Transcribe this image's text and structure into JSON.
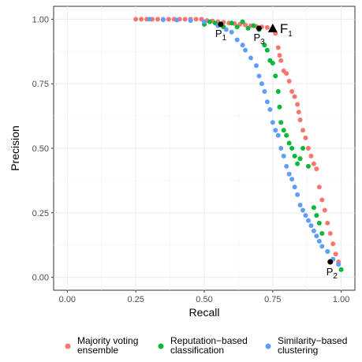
{
  "chart_data": {
    "type": "scatter",
    "xlabel": "Recall",
    "ylabel": "Precision",
    "xlim": [
      -0.05,
      1.05
    ],
    "ylim": [
      -0.05,
      1.05
    ],
    "x_ticks": [
      "0.00",
      "0.25",
      "0.50",
      "0.75",
      "1.00"
    ],
    "y_ticks": [
      "0.00",
      "0.25",
      "0.50",
      "0.75",
      "1.00"
    ],
    "grid": true,
    "legend_position": "bottom",
    "series": [
      {
        "name": "Majority voting ensemble",
        "label_lines": [
          "Majority voting",
          "ensemble"
        ],
        "color": "#F8766D",
        "points": [
          [
            0.25,
            1.0
          ],
          [
            0.27,
            1.0
          ],
          [
            0.29,
            1.0
          ],
          [
            0.31,
            1.0
          ],
          [
            0.33,
            1.0
          ],
          [
            0.35,
            1.0
          ],
          [
            0.37,
            1.0
          ],
          [
            0.39,
            1.0
          ],
          [
            0.41,
            1.0
          ],
          [
            0.43,
            1.0
          ],
          [
            0.45,
            1.0
          ],
          [
            0.47,
            1.0
          ],
          [
            0.49,
            1.0
          ],
          [
            0.51,
            0.995
          ],
          [
            0.53,
            0.993
          ],
          [
            0.55,
            0.99
          ],
          [
            0.57,
            0.988
          ],
          [
            0.59,
            0.985
          ],
          [
            0.61,
            0.983
          ],
          [
            0.63,
            0.98
          ],
          [
            0.65,
            0.978
          ],
          [
            0.67,
            0.975
          ],
          [
            0.69,
            0.972
          ],
          [
            0.71,
            0.97
          ],
          [
            0.73,
            0.968
          ],
          [
            0.76,
            0.945
          ],
          [
            0.77,
            0.89
          ],
          [
            0.775,
            0.86
          ],
          [
            0.78,
            0.84
          ],
          [
            0.79,
            0.8
          ],
          [
            0.8,
            0.79
          ],
          [
            0.81,
            0.76
          ],
          [
            0.82,
            0.72
          ],
          [
            0.83,
            0.7
          ],
          [
            0.84,
            0.67
          ],
          [
            0.845,
            0.64
          ],
          [
            0.85,
            0.61
          ],
          [
            0.86,
            0.57
          ],
          [
            0.87,
            0.54
          ],
          [
            0.88,
            0.5
          ],
          [
            0.89,
            0.47
          ],
          [
            0.9,
            0.44
          ],
          [
            0.91,
            0.42
          ],
          [
            0.92,
            0.35
          ],
          [
            0.93,
            0.3
          ],
          [
            0.94,
            0.26
          ],
          [
            0.95,
            0.21
          ],
          [
            0.96,
            0.17
          ],
          [
            0.97,
            0.13
          ],
          [
            0.98,
            0.09
          ],
          [
            0.99,
            0.06
          ]
        ]
      },
      {
        "name": "Reputation-based classification",
        "label_lines": [
          "Reputation−based",
          "classification"
        ],
        "color": "#00BA38",
        "points": [
          [
            0.5,
            0.98
          ],
          [
            0.52,
            0.99
          ],
          [
            0.54,
            0.985
          ],
          [
            0.57,
            0.97
          ],
          [
            0.6,
            0.985
          ],
          [
            0.62,
            0.97
          ],
          [
            0.64,
            0.99
          ],
          [
            0.66,
            0.965
          ],
          [
            0.68,
            0.975
          ],
          [
            0.7,
            0.96
          ],
          [
            0.72,
            0.9
          ],
          [
            0.73,
            0.88
          ],
          [
            0.74,
            0.84
          ],
          [
            0.75,
            0.83
          ],
          [
            0.76,
            0.78
          ],
          [
            0.77,
            0.72
          ],
          [
            0.775,
            0.66
          ],
          [
            0.78,
            0.6
          ],
          [
            0.79,
            0.57
          ],
          [
            0.8,
            0.55
          ],
          [
            0.81,
            0.52
          ],
          [
            0.82,
            0.5
          ],
          [
            0.83,
            0.47
          ],
          [
            0.84,
            0.44
          ],
          [
            0.85,
            0.46
          ],
          [
            0.86,
            0.5
          ],
          [
            0.88,
            0.43
          ],
          [
            0.9,
            0.27
          ],
          [
            0.91,
            0.24
          ],
          [
            0.92,
            0.21
          ],
          [
            0.93,
            0.17
          ],
          [
            0.95,
            0.1
          ],
          [
            0.97,
            0.07
          ],
          [
            1.0,
            0.03
          ]
        ]
      },
      {
        "name": "Similarity-based clustering",
        "label_lines": [
          "Similarity−based",
          "clustering"
        ],
        "color": "#619CFF",
        "points": [
          [
            0.3,
            1.0
          ],
          [
            0.35,
            0.998
          ],
          [
            0.4,
            0.997
          ],
          [
            0.45,
            0.995
          ],
          [
            0.5,
            0.99
          ],
          [
            0.55,
            0.975
          ],
          [
            0.58,
            0.96
          ],
          [
            0.6,
            0.95
          ],
          [
            0.62,
            0.92
          ],
          [
            0.64,
            0.9
          ],
          [
            0.65,
            0.88
          ],
          [
            0.67,
            0.85
          ],
          [
            0.69,
            0.82
          ],
          [
            0.7,
            0.78
          ],
          [
            0.71,
            0.75
          ],
          [
            0.72,
            0.72
          ],
          [
            0.73,
            0.68
          ],
          [
            0.74,
            0.65
          ],
          [
            0.75,
            0.6
          ],
          [
            0.76,
            0.57
          ],
          [
            0.77,
            0.55
          ],
          [
            0.78,
            0.5
          ],
          [
            0.79,
            0.47
          ],
          [
            0.8,
            0.43
          ],
          [
            0.81,
            0.4
          ],
          [
            0.82,
            0.38
          ],
          [
            0.83,
            0.35
          ],
          [
            0.84,
            0.32
          ],
          [
            0.85,
            0.28
          ],
          [
            0.86,
            0.26
          ],
          [
            0.87,
            0.24
          ],
          [
            0.88,
            0.22
          ],
          [
            0.89,
            0.2
          ],
          [
            0.9,
            0.18
          ],
          [
            0.91,
            0.16
          ],
          [
            0.92,
            0.14
          ],
          [
            0.93,
            0.12
          ],
          [
            0.95,
            0.1
          ],
          [
            0.97,
            0.07
          ],
          [
            0.99,
            0.05
          ]
        ]
      }
    ],
    "annotations": [
      {
        "label": "P",
        "sub": "1",
        "x": 0.56,
        "y": 0.98,
        "marker": "point"
      },
      {
        "label": "P",
        "sub": "3",
        "x": 0.7,
        "y": 0.965,
        "marker": "point"
      },
      {
        "label": "F",
        "sub": "1",
        "x": 0.75,
        "y": 0.965,
        "marker": "triangle"
      },
      {
        "label": "P",
        "sub": "2",
        "x": 0.96,
        "y": 0.06,
        "marker": "point"
      }
    ]
  }
}
